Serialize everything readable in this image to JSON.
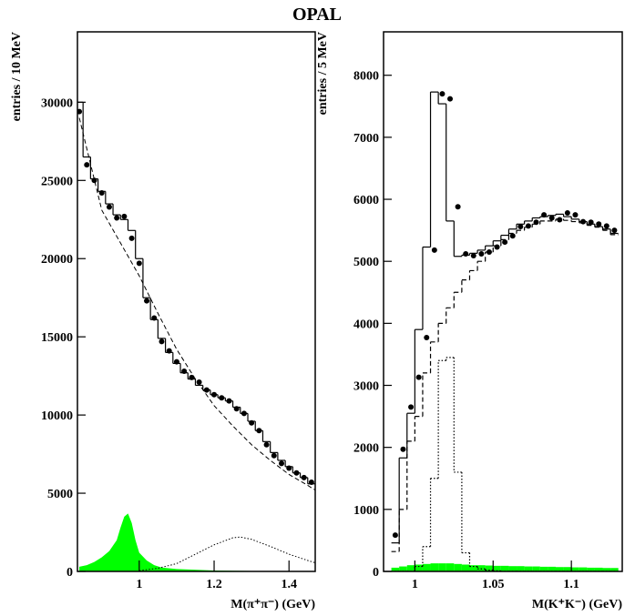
{
  "title": "OPAL",
  "chart_data": [
    {
      "type": "histogram",
      "ylabel": "entries / 10 MeV",
      "xlabel": "M(π⁺π⁻) (GeV)",
      "xlim": [
        0.835,
        1.47
      ],
      "ylim": [
        0,
        34500
      ],
      "xticks": [
        1,
        1.2,
        1.4
      ],
      "yticks": [
        0,
        5000,
        10000,
        15000,
        20000,
        25000,
        30000
      ],
      "series": [
        {
          "style": "area",
          "color": "#00ff00",
          "x": [
            0.84,
            0.86,
            0.88,
            0.9,
            0.92,
            0.94,
            0.95,
            0.96,
            0.97,
            0.98,
            0.99,
            1.0,
            1.02,
            1.04,
            1.06,
            1.1,
            1.2,
            1.3,
            1.46
          ],
          "values": [
            300,
            400,
            600,
            900,
            1300,
            2000,
            2800,
            3500,
            3700,
            3100,
            2000,
            1200,
            700,
            400,
            250,
            150,
            60,
            30,
            20
          ]
        },
        {
          "style": "line",
          "dash": "dotted",
          "color": "#000000",
          "x": [
            1.0,
            1.05,
            1.1,
            1.15,
            1.2,
            1.25,
            1.27,
            1.3,
            1.35,
            1.4,
            1.45,
            1.47
          ],
          "values": [
            50,
            200,
            500,
            1100,
            1700,
            2150,
            2200,
            2050,
            1600,
            1100,
            700,
            550
          ]
        },
        {
          "style": "line",
          "dash": "dashed",
          "color": "#000000",
          "x": [
            0.84,
            0.9,
            0.95,
            1.0,
            1.05,
            1.1,
            1.15,
            1.2,
            1.25,
            1.3,
            1.35,
            1.4,
            1.45,
            1.47
          ],
          "values": [
            29000,
            23100,
            21000,
            18900,
            16500,
            14200,
            12300,
            10600,
            9300,
            8100,
            7100,
            6200,
            5500,
            5200
          ]
        },
        {
          "style": "step",
          "dash": "solid",
          "color": "#000000",
          "x": [
            0.84,
            0.86,
            0.88,
            0.9,
            0.92,
            0.94,
            0.96,
            0.98,
            1.0,
            1.02,
            1.04,
            1.06,
            1.08,
            1.1,
            1.12,
            1.14,
            1.16,
            1.18,
            1.2,
            1.22,
            1.24,
            1.26,
            1.28,
            1.3,
            1.32,
            1.34,
            1.36,
            1.38,
            1.4,
            1.42,
            1.44,
            1.46
          ],
          "values": [
            30000,
            26500,
            25100,
            24300,
            23500,
            22800,
            22500,
            21800,
            20000,
            17500,
            16100,
            14900,
            14000,
            13300,
            12700,
            12300,
            11900,
            11600,
            11300,
            11100,
            10900,
            10500,
            10100,
            9600,
            9000,
            8300,
            7600,
            7100,
            6700,
            6300,
            6000,
            5600
          ]
        },
        {
          "style": "points",
          "color": "#000000",
          "x": [
            0.84,
            0.86,
            0.88,
            0.9,
            0.92,
            0.94,
            0.96,
            0.98,
            1.0,
            1.02,
            1.04,
            1.06,
            1.08,
            1.1,
            1.12,
            1.14,
            1.16,
            1.18,
            1.2,
            1.22,
            1.24,
            1.26,
            1.28,
            1.3,
            1.32,
            1.34,
            1.36,
            1.38,
            1.4,
            1.42,
            1.44,
            1.46
          ],
          "values": [
            29400,
            26000,
            25000,
            24200,
            23300,
            22600,
            22700,
            21300,
            19700,
            17300,
            16200,
            14700,
            14100,
            13400,
            12800,
            12400,
            12100,
            11600,
            11300,
            11100,
            10900,
            10400,
            10100,
            9500,
            9000,
            8100,
            7400,
            6900,
            6600,
            6300,
            6000,
            5700
          ]
        }
      ]
    },
    {
      "type": "histogram",
      "ylabel": "entries / 5 MeV",
      "xlabel": "M(K⁺K⁻) (GeV)",
      "xlim": [
        0.98,
        1.1325
      ],
      "ylim": [
        0,
        8700
      ],
      "xticks": [
        1,
        1.05,
        1.1
      ],
      "yticks": [
        0,
        1000,
        2000,
        3000,
        4000,
        5000,
        6000,
        7000,
        8000
      ],
      "series": [
        {
          "style": "steparea",
          "color": "#00ff00",
          "x": [
            0.9875,
            0.9925,
            0.9975,
            1.0025,
            1.0075,
            1.0125,
            1.0175,
            1.0225,
            1.0275,
            1.0325,
            1.0375,
            1.0425,
            1.0475,
            1.0525,
            1.0575,
            1.0625,
            1.0675,
            1.0725,
            1.0775,
            1.0825,
            1.0875,
            1.0925,
            1.0975,
            1.1025,
            1.1075,
            1.1125,
            1.1175,
            1.1225,
            1.1275
          ],
          "values": [
            60,
            80,
            100,
            110,
            120,
            130,
            130,
            130,
            120,
            110,
            100,
            100,
            95,
            90,
            90,
            85,
            85,
            80,
            80,
            75,
            75,
            70,
            70,
            65,
            65,
            60,
            60,
            55,
            55
          ]
        },
        {
          "style": "step",
          "dash": "dotted",
          "color": "#000000",
          "x": [
            0.9875,
            0.9925,
            0.9975,
            1.0025,
            1.0075,
            1.0125,
            1.0175,
            1.0225,
            1.0275,
            1.0325,
            1.0375,
            1.0425,
            1.0475,
            1.0525,
            1.0575,
            1.0625,
            1.0675,
            1.0725,
            1.0775,
            1.0825,
            1.0875,
            1.0925,
            1.0975,
            1.1025,
            1.1075,
            1.1125,
            1.1175,
            1.1225,
            1.1275
          ],
          "values": [
            0,
            0,
            0,
            80,
            400,
            1500,
            3400,
            3450,
            1600,
            300,
            80,
            40,
            20,
            10,
            0,
            0,
            0,
            0,
            0,
            0,
            0,
            0,
            0,
            0,
            0,
            0,
            0,
            0,
            0
          ]
        },
        {
          "style": "step",
          "dash": "dashed",
          "color": "#000000",
          "x": [
            0.9875,
            0.9925,
            0.9975,
            1.0025,
            1.0075,
            1.0125,
            1.0175,
            1.0225,
            1.0275,
            1.0325,
            1.0375,
            1.0425,
            1.0475,
            1.0525,
            1.0575,
            1.0625,
            1.0675,
            1.0725,
            1.0775,
            1.0825,
            1.0875,
            1.0925,
            1.0975,
            1.1025,
            1.1075,
            1.1125,
            1.1175,
            1.1225,
            1.1275
          ],
          "values": [
            320,
            1000,
            2100,
            2500,
            3200,
            3700,
            4000,
            4250,
            4500,
            4700,
            4850,
            5000,
            5150,
            5250,
            5350,
            5450,
            5500,
            5550,
            5600,
            5650,
            5650,
            5680,
            5660,
            5640,
            5620,
            5580,
            5550,
            5500,
            5430
          ]
        },
        {
          "style": "step",
          "dash": "solid",
          "color": "#000000",
          "x": [
            0.9875,
            0.9925,
            0.9975,
            1.0025,
            1.0075,
            1.0125,
            1.0175,
            1.0225,
            1.0275,
            1.0325,
            1.0375,
            1.0425,
            1.0475,
            1.0525,
            1.0575,
            1.0625,
            1.0675,
            1.0725,
            1.0775,
            1.0825,
            1.0875,
            1.0925,
            1.0975,
            1.1025,
            1.1075,
            1.1125,
            1.1175,
            1.1225,
            1.1275
          ],
          "values": [
            460,
            1830,
            2550,
            3900,
            5230,
            7730,
            7540,
            5650,
            5080,
            5100,
            5130,
            5180,
            5250,
            5330,
            5420,
            5520,
            5600,
            5650,
            5700,
            5720,
            5740,
            5760,
            5720,
            5680,
            5640,
            5600,
            5560,
            5520,
            5450
          ]
        },
        {
          "style": "points",
          "color": "#000000",
          "x": [
            0.9875,
            0.9925,
            0.9975,
            1.0025,
            1.0075,
            1.0125,
            1.0175,
            1.0225,
            1.0275,
            1.0325,
            1.0375,
            1.0425,
            1.0475,
            1.0525,
            1.0575,
            1.0625,
            1.0675,
            1.0725,
            1.0775,
            1.0825,
            1.0875,
            1.0925,
            1.0975,
            1.1025,
            1.1075,
            1.1125,
            1.1175,
            1.1225,
            1.1275
          ],
          "values": [
            585,
            1970,
            2650,
            3130,
            3770,
            5180,
            7700,
            7620,
            5880,
            5120,
            5090,
            5120,
            5150,
            5230,
            5310,
            5410,
            5560,
            5570,
            5630,
            5750,
            5700,
            5670,
            5780,
            5750,
            5640,
            5630,
            5600,
            5570,
            5500
          ]
        }
      ]
    }
  ]
}
